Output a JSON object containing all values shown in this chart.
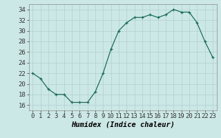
{
  "x": [
    0,
    1,
    2,
    3,
    4,
    5,
    6,
    7,
    8,
    9,
    10,
    11,
    12,
    13,
    14,
    15,
    16,
    17,
    18,
    19,
    20,
    21,
    22,
    23
  ],
  "y": [
    22,
    21,
    19,
    18,
    18,
    16.5,
    16.5,
    16.5,
    18.5,
    22,
    26.5,
    30,
    31.5,
    32.5,
    32.5,
    33,
    32.5,
    33,
    34,
    33.5,
    33.5,
    31.5,
    28,
    25
  ],
  "line_color": "#1a6b5a",
  "marker": "+",
  "background_color": "#cce8e6",
  "grid_color": "#b0cfcd",
  "xlabel": "Humidex (Indice chaleur)",
  "ylim": [
    15,
    35
  ],
  "yticks": [
    16,
    18,
    20,
    22,
    24,
    26,
    28,
    30,
    32,
    34
  ],
  "xticks": [
    0,
    1,
    2,
    3,
    4,
    5,
    6,
    7,
    8,
    9,
    10,
    11,
    12,
    13,
    14,
    15,
    16,
    17,
    18,
    19,
    20,
    21,
    22,
    23
  ],
  "xlabel_fontsize": 7.5,
  "tick_fontsize": 6.5
}
